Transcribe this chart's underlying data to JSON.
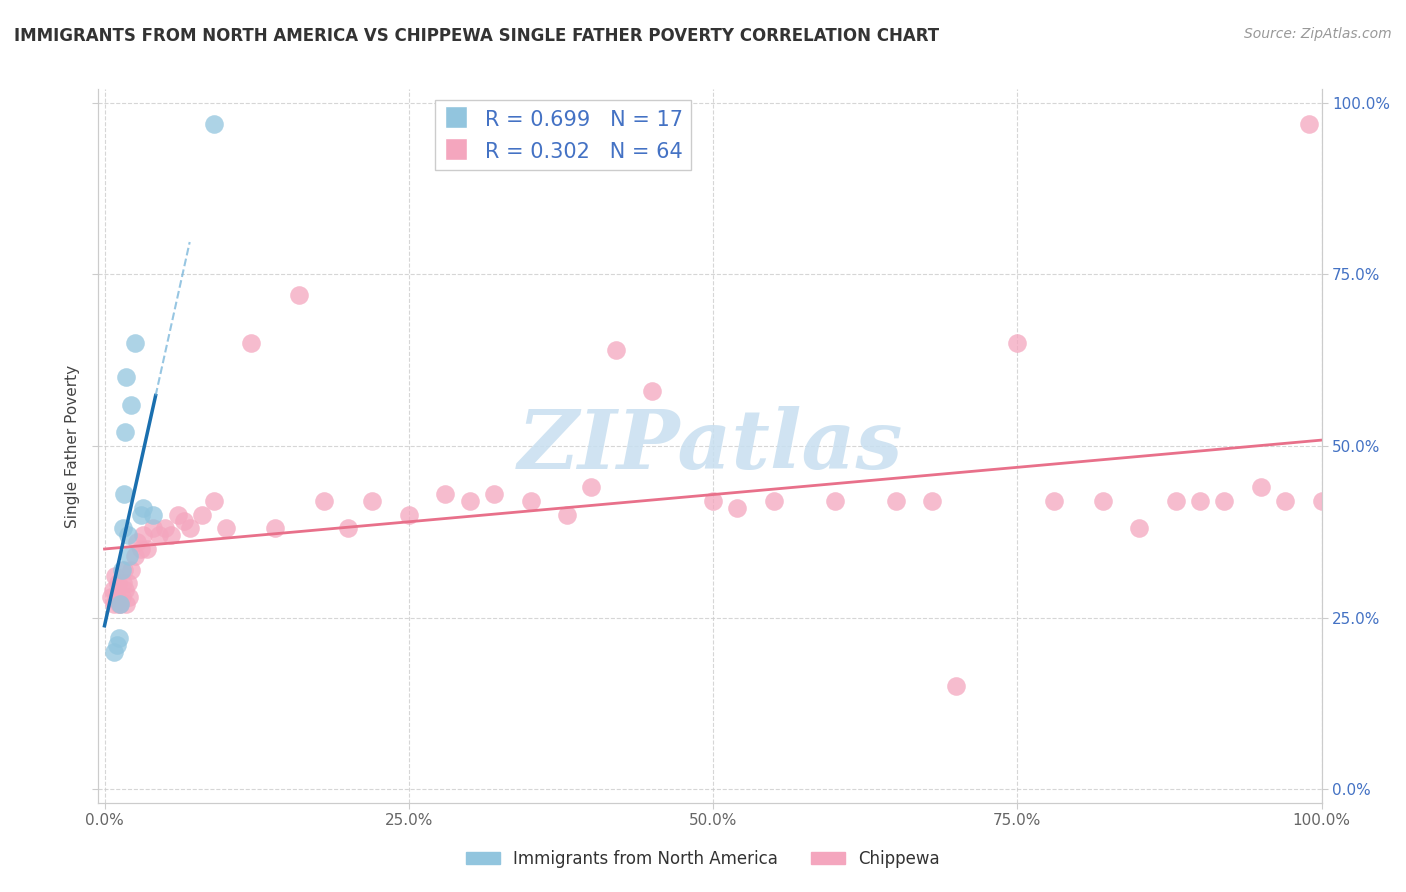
{
  "title": "IMMIGRANTS FROM NORTH AMERICA VS CHIPPEWA SINGLE FATHER POVERTY CORRELATION CHART",
  "source": "Source: ZipAtlas.com",
  "ylabel": "Single Father Poverty",
  "legend_label1": "Immigrants from North America",
  "legend_label2": "Chippewa",
  "R1": 0.699,
  "N1": 17,
  "R2": 0.302,
  "N2": 64,
  "color1": "#92c5de",
  "color2": "#f4a6be",
  "trendline1_solid_color": "#1a6faf",
  "trendline1_dash_color": "#6baed6",
  "trendline2_color": "#e8708a",
  "xlim": [
    -0.005,
    1.0
  ],
  "ylim": [
    -0.02,
    1.02
  ],
  "xticks": [
    0.0,
    0.25,
    0.5,
    0.75,
    1.0
  ],
  "yticks": [
    0.0,
    0.25,
    0.5,
    0.75,
    1.0
  ],
  "blue_x": [
    0.008,
    0.01,
    0.012,
    0.013,
    0.014,
    0.015,
    0.016,
    0.017,
    0.018,
    0.019,
    0.02,
    0.022,
    0.025,
    0.03,
    0.032,
    0.04,
    0.09
  ],
  "blue_y": [
    0.2,
    0.21,
    0.22,
    0.27,
    0.32,
    0.38,
    0.43,
    0.52,
    0.6,
    0.37,
    0.34,
    0.56,
    0.65,
    0.4,
    0.41,
    0.4,
    0.97
  ],
  "pink_x": [
    0.005,
    0.007,
    0.008,
    0.009,
    0.01,
    0.011,
    0.012,
    0.013,
    0.014,
    0.015,
    0.016,
    0.017,
    0.018,
    0.019,
    0.02,
    0.022,
    0.025,
    0.027,
    0.03,
    0.032,
    0.035,
    0.04,
    0.045,
    0.05,
    0.055,
    0.06,
    0.065,
    0.07,
    0.08,
    0.09,
    0.1,
    0.12,
    0.14,
    0.16,
    0.18,
    0.2,
    0.22,
    0.25,
    0.28,
    0.3,
    0.32,
    0.35,
    0.38,
    0.4,
    0.42,
    0.45,
    0.5,
    0.52,
    0.55,
    0.6,
    0.65,
    0.68,
    0.7,
    0.75,
    0.78,
    0.82,
    0.85,
    0.88,
    0.9,
    0.92,
    0.95,
    0.97,
    0.99,
    1.0
  ],
  "pink_y": [
    0.28,
    0.29,
    0.27,
    0.31,
    0.28,
    0.3,
    0.27,
    0.27,
    0.28,
    0.3,
    0.32,
    0.29,
    0.27,
    0.3,
    0.28,
    0.32,
    0.34,
    0.36,
    0.35,
    0.37,
    0.35,
    0.38,
    0.37,
    0.38,
    0.37,
    0.4,
    0.39,
    0.38,
    0.4,
    0.42,
    0.38,
    0.65,
    0.38,
    0.72,
    0.42,
    0.38,
    0.42,
    0.4,
    0.43,
    0.42,
    0.43,
    0.42,
    0.4,
    0.44,
    0.64,
    0.58,
    0.42,
    0.41,
    0.42,
    0.42,
    0.42,
    0.42,
    0.15,
    0.65,
    0.42,
    0.42,
    0.38,
    0.42,
    0.42,
    0.42,
    0.44,
    0.42,
    0.97,
    0.42
  ],
  "watermark": "ZIPatlas",
  "watermark_color": "#c8dff0",
  "grid_color": "#cccccc",
  "tick_color_y": "#4472c4",
  "tick_color_x": "#666666",
  "background": "#ffffff"
}
